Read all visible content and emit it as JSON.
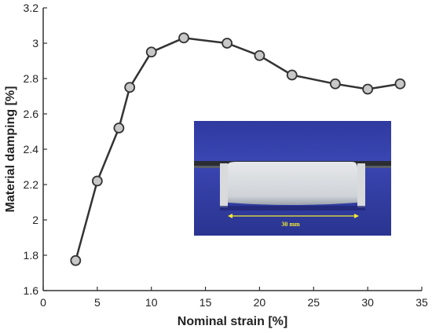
{
  "chart_data": {
    "type": "line",
    "xlabel": "Nominal strain [%]",
    "ylabel": "Material damping [%]",
    "xlim": [
      0,
      35
    ],
    "ylim": [
      1.6,
      3.2
    ],
    "xticks": [
      "0",
      "5",
      "10",
      "15",
      "20",
      "25",
      "30",
      "35"
    ],
    "yticks": [
      "1.6",
      "1.8",
      "2",
      "2.2",
      "2.4",
      "2.6",
      "2.8",
      "3",
      "3.2"
    ],
    "grid": false,
    "series": [
      {
        "x": [
          3,
          5,
          7,
          8,
          10,
          13,
          17,
          20,
          23,
          27,
          30,
          33
        ],
        "y": [
          1.77,
          2.22,
          2.52,
          2.75,
          2.95,
          3.03,
          3.0,
          2.93,
          2.82,
          2.77,
          2.74,
          2.77
        ],
        "color": "#333333",
        "marker_fill": "#c8c8c8"
      }
    ]
  },
  "inset": {
    "scale_label": "30 mm",
    "scale_color": "#f2ea33"
  }
}
